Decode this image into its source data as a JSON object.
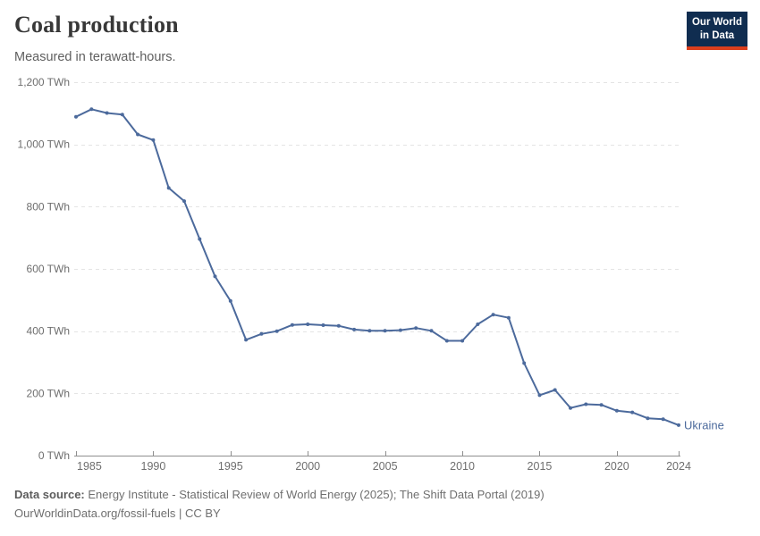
{
  "header": {
    "title": "Coal production",
    "subtitle": "Measured in terawatt-hours."
  },
  "logo": {
    "line1": "Our World",
    "line2": "in Data",
    "bg_color": "#102d50",
    "accent_color": "#dc3f1d"
  },
  "chart_data": {
    "type": "line",
    "title": "Coal production",
    "subtitle": "Measured in terawatt-hours.",
    "unit": "TWh",
    "grid": "horizontal-dashed",
    "legend_position": "line-end-label",
    "xlim": [
      1985,
      2024
    ],
    "ylim": [
      0,
      1200
    ],
    "x": [
      1985,
      1986,
      1987,
      1988,
      1989,
      1990,
      1991,
      1992,
      1993,
      1994,
      1995,
      1996,
      1997,
      1998,
      1999,
      2000,
      2001,
      2002,
      2003,
      2004,
      2005,
      2006,
      2007,
      2008,
      2009,
      2010,
      2011,
      2012,
      2013,
      2014,
      2015,
      2016,
      2017,
      2018,
      2019,
      2020,
      2021,
      2022,
      2023,
      2024
    ],
    "series": [
      {
        "name": "Ukraine",
        "color": "#4c6a9c",
        "values": [
          1089,
          1113,
          1101,
          1096,
          1032,
          1014,
          860,
          818,
          696,
          576,
          497,
          372,
          391,
          400,
          420,
          422,
          419,
          417,
          405,
          401,
          401,
          403,
          410,
          401,
          369,
          369,
          422,
          453,
          443,
          297,
          194,
          211,
          153,
          165,
          163,
          144,
          139,
          120,
          117,
          98
        ]
      }
    ],
    "xticks": {
      "values": [
        1985,
        1990,
        1995,
        2000,
        2005,
        2010,
        2015,
        2020,
        2024
      ],
      "labels": [
        "1985",
        "1990",
        "1995",
        "2000",
        "2005",
        "2010",
        "2015",
        "2020",
        "2024"
      ]
    },
    "yticks": {
      "values": [
        0,
        200,
        400,
        600,
        800,
        1000,
        1200
      ],
      "labels": [
        "0 TWh",
        "200 TWh",
        "400 TWh",
        "600 TWh",
        "800 TWh",
        "1,000 TWh",
        "1,200 TWh"
      ]
    }
  },
  "colors": {
    "line": "#4c6a9c",
    "gridline": "#e4e4e4",
    "axis": "#8e8e8e",
    "tick_label": "#6e6e6e",
    "title": "#383838",
    "subtitle": "#606060",
    "footer": "#6f6f6f"
  },
  "footer": {
    "source_label": "Data source:",
    "source_text": " Energy Institute - Statistical Review of World Energy (2025); The Shift Data Portal (2019)",
    "license_line": "OurWorldinData.org/fossil-fuels | CC BY"
  }
}
